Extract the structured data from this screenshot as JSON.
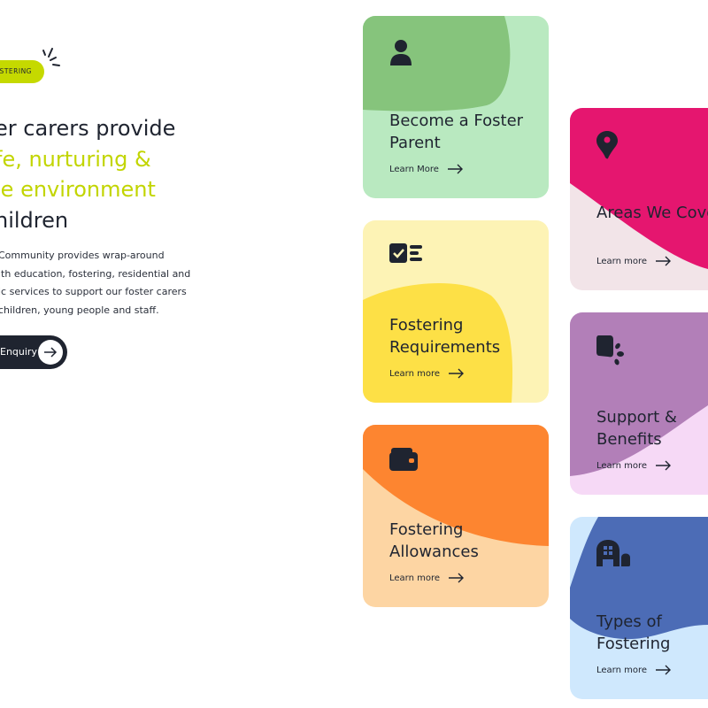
{
  "hero": {
    "badge": "OSTERING",
    "line1": "er carers provide",
    "line2": "fe, nurturing &",
    "line3": "le environment",
    "line4": "hildren",
    "desc": [
      "Community provides wrap-around",
      "ith education, fostering, residential and",
      "ic services to support our foster carers",
      "children, young people and staff."
    ],
    "button": "Enquiry",
    "accent": "#c5d900"
  },
  "cards": [
    {
      "title1": "Become a Foster",
      "title2": "Parent",
      "link": "Learn More",
      "icon": "person-icon",
      "light": "#b9e9c0",
      "dark": "#86c47c"
    },
    {
      "title1": "Fostering",
      "title2": "Requirements",
      "link": "Learn more",
      "icon": "checklist-icon",
      "light": "#fdf3b5",
      "dark": "#fde046"
    },
    {
      "title1": "Fostering",
      "title2": "Allowances",
      "link": "Learn more",
      "icon": "wallet-icon",
      "light": "#fdd5a3",
      "dark": "#fd8530"
    },
    {
      "title1": "Areas We Cove",
      "title2": "",
      "link": "Learn more",
      "icon": "map-pin-icon",
      "light": "#f2e4e8",
      "dark": "#e5166f"
    },
    {
      "title1": "Support &",
      "title2": "Benefits",
      "link": "Learn more",
      "icon": "speech-bubble-icon",
      "light": "#f6d9f6",
      "dark": "#b27fb8"
    },
    {
      "title1": "Types of",
      "title2": "Fostering",
      "link": "Learn more",
      "icon": "house-icon",
      "light": "#cfe8fd",
      "dark": "#4c6cb6"
    }
  ]
}
